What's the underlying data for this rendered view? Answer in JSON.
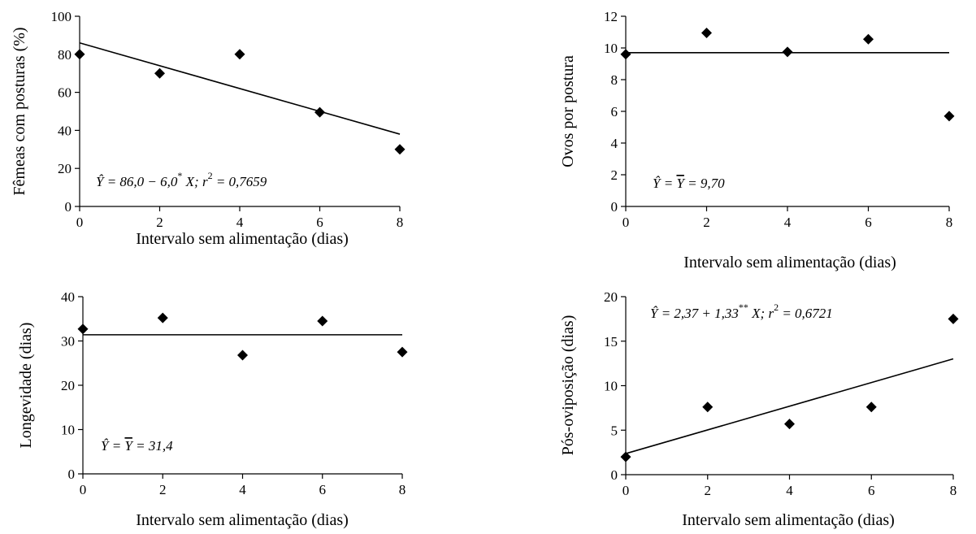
{
  "chart_data": [
    {
      "type": "scatter",
      "xlabel": "Intervalo sem alimentação (dias)",
      "ylabel": "Fêmeas com posturas (%)",
      "xlim": [
        0,
        8
      ],
      "ylim": [
        0,
        100
      ],
      "xticks": [
        "0",
        "2",
        "4",
        "6",
        "8"
      ],
      "yticks": [
        "0",
        "20",
        "40",
        "60",
        "80",
        "100"
      ],
      "points": [
        {
          "x": 0,
          "y": 80
        },
        {
          "x": 2,
          "y": 70
        },
        {
          "x": 4,
          "y": 80
        },
        {
          "x": 6,
          "y": 49.5
        },
        {
          "x": 8,
          "y": 30
        }
      ],
      "fit": {
        "kind": "linear",
        "intercept": 86.0,
        "slope": -6.0
      },
      "equation": "Ŷ = 86,0 − 6,0* X;   r² = 0,7659"
    },
    {
      "type": "scatter",
      "xlabel": "Intervalo sem alimentação (dias)",
      "ylabel": "Ovos por postura",
      "xlim": [
        0,
        8
      ],
      "ylim": [
        0,
        12
      ],
      "xticks": [
        "0",
        "2",
        "4",
        "6",
        "8"
      ],
      "yticks": [
        "0",
        "2",
        "4",
        "6",
        "8",
        "10",
        "12"
      ],
      "points": [
        {
          "x": 0,
          "y": 9.6
        },
        {
          "x": 2,
          "y": 10.95
        },
        {
          "x": 4,
          "y": 9.75
        },
        {
          "x": 6,
          "y": 10.55
        },
        {
          "x": 8,
          "y": 5.7
        }
      ],
      "fit": {
        "kind": "linear",
        "intercept": 9.7,
        "slope": 0
      },
      "equation": "Ŷ = Ȳ = 9,70"
    },
    {
      "type": "scatter",
      "xlabel": "Intervalo sem alimentação (dias)",
      "ylabel": "Longevidade (dias)",
      "xlim": [
        0,
        8
      ],
      "ylim": [
        0,
        40
      ],
      "xticks": [
        "0",
        "2",
        "4",
        "6",
        "8"
      ],
      "yticks": [
        "0",
        "10",
        "20",
        "30",
        "40"
      ],
      "points": [
        {
          "x": 0,
          "y": 32.7
        },
        {
          "x": 2,
          "y": 35.2
        },
        {
          "x": 4,
          "y": 26.8
        },
        {
          "x": 6,
          "y": 34.5
        },
        {
          "x": 8,
          "y": 27.5
        }
      ],
      "fit": {
        "kind": "linear",
        "intercept": 31.4,
        "slope": 0
      },
      "equation": "Ŷ = Ȳ = 31,4"
    },
    {
      "type": "scatter",
      "xlabel": "Intervalo sem alimentação (dias)",
      "ylabel": "Pós-oviposição (dias)",
      "xlim": [
        0,
        8
      ],
      "ylim": [
        0,
        20
      ],
      "xticks": [
        "0",
        "2",
        "4",
        "6",
        "8"
      ],
      "yticks": [
        "0",
        "5",
        "10",
        "15",
        "20"
      ],
      "points": [
        {
          "x": 0,
          "y": 2.0
        },
        {
          "x": 2,
          "y": 7.6
        },
        {
          "x": 4,
          "y": 5.7
        },
        {
          "x": 6,
          "y": 7.6
        },
        {
          "x": 8,
          "y": 17.5
        }
      ],
      "fit": {
        "kind": "linear",
        "intercept": 2.37,
        "slope": 1.33
      },
      "equation": "Ŷ = 2,37 + 1,33** X;   r² = 0,6721"
    }
  ]
}
